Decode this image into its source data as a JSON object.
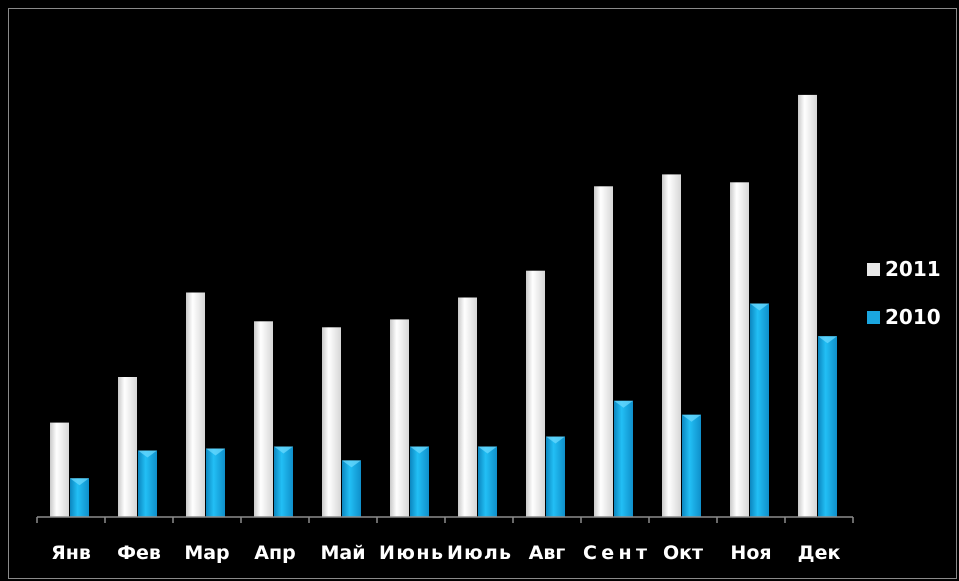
{
  "chart_data": {
    "type": "bar",
    "categories": [
      "Янв",
      "Фев",
      "Мар",
      "Апр",
      "Май",
      "Июнь",
      "Июль",
      "Авг",
      "Сент",
      "Окт",
      "Ноя",
      "Дек"
    ],
    "series": [
      {
        "name": "2011",
        "values": [
          95,
          141,
          226,
          197,
          191,
          199,
          221,
          248,
          333,
          345,
          337,
          425
        ],
        "color": "#f2f2f2"
      },
      {
        "name": "2010",
        "values": [
          39,
          67,
          69,
          71,
          57,
          71,
          71,
          81,
          117,
          103,
          215,
          182
        ],
        "color": "#1aa6e0"
      }
    ],
    "ylim": [
      0,
      440
    ],
    "grid": false,
    "legend_position": "right",
    "background": "#000000"
  }
}
